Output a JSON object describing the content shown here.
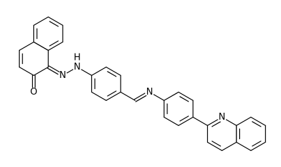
{
  "labels": [
    "O",
    "N",
    "H",
    "N",
    "N",
    "N"
  ]
}
